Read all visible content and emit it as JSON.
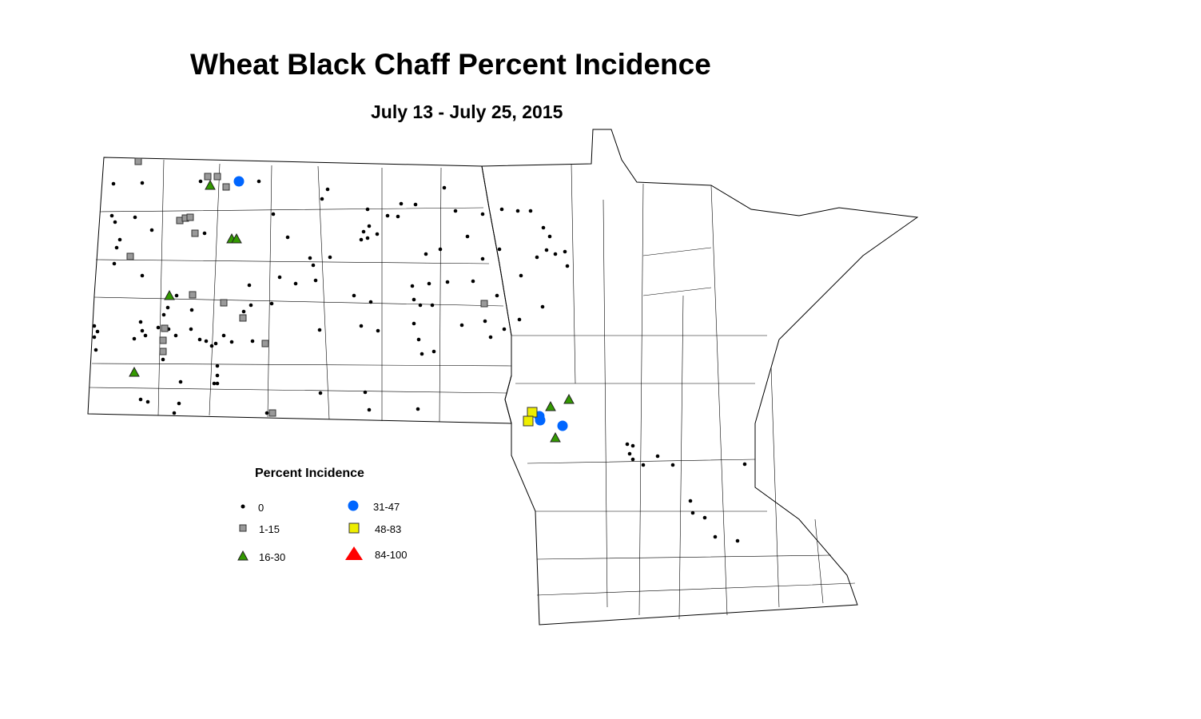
{
  "title": "Wheat Black Chaff Percent Incidence",
  "subtitle": "July 13 - July 25, 2015",
  "legend": {
    "title": "Percent Incidence",
    "items": [
      {
        "label": "0",
        "symbol": "dot",
        "color": "#000000"
      },
      {
        "label": "1-15",
        "symbol": "square",
        "color": "#999999"
      },
      {
        "label": "16-30",
        "symbol": "triangle",
        "color": "#339900"
      },
      {
        "label": "31-47",
        "symbol": "circle",
        "color": "#0066ff"
      },
      {
        "label": "48-83",
        "symbol": "square",
        "color": "#eeee00"
      },
      {
        "label": "84-100",
        "symbol": "triangle",
        "color": "#ff0000"
      }
    ]
  },
  "regions": [
    "North Dakota",
    "Minnesota"
  ]
}
